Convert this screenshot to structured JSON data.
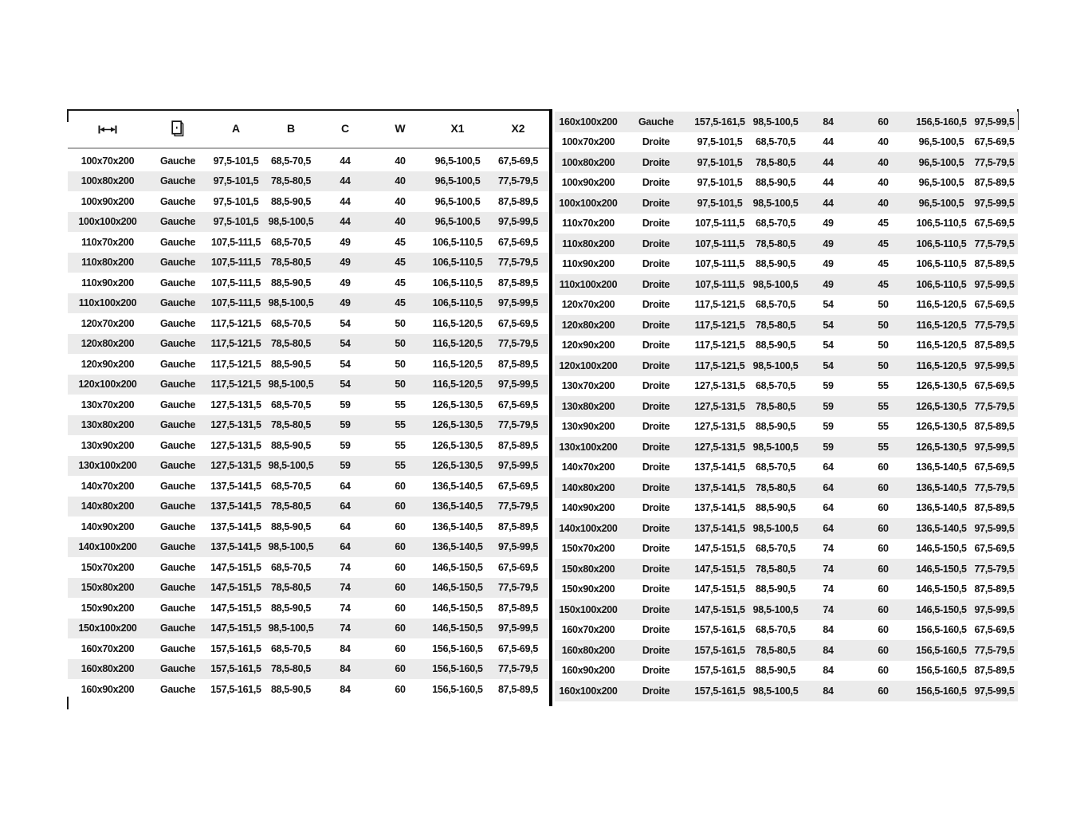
{
  "document": {
    "type": "dimension-specification-table",
    "left_panel_side_value": "Gauche",
    "right_panel_side_values": [
      "Gauche",
      "Droite"
    ]
  },
  "colors": {
    "background": "#ffffff",
    "stripe": "#ebebeb",
    "text": "#141414",
    "divider": "#000000",
    "header_rule": "#ababab"
  },
  "table": {
    "headers": {
      "col1_icon": "width-dimension-icon",
      "col2_icon": "door-icon",
      "labels": [
        "A",
        "B",
        "C",
        "W",
        "X1",
        "X2"
      ]
    },
    "columns": [
      "size",
      "side",
      "A",
      "B",
      "C",
      "W",
      "X1",
      "X2"
    ],
    "left_rows": [
      [
        "100x70x200",
        "Gauche",
        "97,5-101,5",
        "68,5-70,5",
        "44",
        "40",
        "96,5-100,5",
        "67,5-69,5"
      ],
      [
        "100x80x200",
        "Gauche",
        "97,5-101,5",
        "78,5-80,5",
        "44",
        "40",
        "96,5-100,5",
        "77,5-79,5"
      ],
      [
        "100x90x200",
        "Gauche",
        "97,5-101,5",
        "88,5-90,5",
        "44",
        "40",
        "96,5-100,5",
        "87,5-89,5"
      ],
      [
        "100x100x200",
        "Gauche",
        "97,5-101,5",
        "98,5-100,5",
        "44",
        "40",
        "96,5-100,5",
        "97,5-99,5"
      ],
      [
        "110x70x200",
        "Gauche",
        "107,5-111,5",
        "68,5-70,5",
        "49",
        "45",
        "106,5-110,5",
        "67,5-69,5"
      ],
      [
        "110x80x200",
        "Gauche",
        "107,5-111,5",
        "78,5-80,5",
        "49",
        "45",
        "106,5-110,5",
        "77,5-79,5"
      ],
      [
        "110x90x200",
        "Gauche",
        "107,5-111,5",
        "88,5-90,5",
        "49",
        "45",
        "106,5-110,5",
        "87,5-89,5"
      ],
      [
        "110x100x200",
        "Gauche",
        "107,5-111,5",
        "98,5-100,5",
        "49",
        "45",
        "106,5-110,5",
        "97,5-99,5"
      ],
      [
        "120x70x200",
        "Gauche",
        "117,5-121,5",
        "68,5-70,5",
        "54",
        "50",
        "116,5-120,5",
        "67,5-69,5"
      ],
      [
        "120x80x200",
        "Gauche",
        "117,5-121,5",
        "78,5-80,5",
        "54",
        "50",
        "116,5-120,5",
        "77,5-79,5"
      ],
      [
        "120x90x200",
        "Gauche",
        "117,5-121,5",
        "88,5-90,5",
        "54",
        "50",
        "116,5-120,5",
        "87,5-89,5"
      ],
      [
        "120x100x200",
        "Gauche",
        "117,5-121,5",
        "98,5-100,5",
        "54",
        "50",
        "116,5-120,5",
        "97,5-99,5"
      ],
      [
        "130x70x200",
        "Gauche",
        "127,5-131,5",
        "68,5-70,5",
        "59",
        "55",
        "126,5-130,5",
        "67,5-69,5"
      ],
      [
        "130x80x200",
        "Gauche",
        "127,5-131,5",
        "78,5-80,5",
        "59",
        "55",
        "126,5-130,5",
        "77,5-79,5"
      ],
      [
        "130x90x200",
        "Gauche",
        "127,5-131,5",
        "88,5-90,5",
        "59",
        "55",
        "126,5-130,5",
        "87,5-89,5"
      ],
      [
        "130x100x200",
        "Gauche",
        "127,5-131,5",
        "98,5-100,5",
        "59",
        "55",
        "126,5-130,5",
        "97,5-99,5"
      ],
      [
        "140x70x200",
        "Gauche",
        "137,5-141,5",
        "68,5-70,5",
        "64",
        "60",
        "136,5-140,5",
        "67,5-69,5"
      ],
      [
        "140x80x200",
        "Gauche",
        "137,5-141,5",
        "78,5-80,5",
        "64",
        "60",
        "136,5-140,5",
        "77,5-79,5"
      ],
      [
        "140x90x200",
        "Gauche",
        "137,5-141,5",
        "88,5-90,5",
        "64",
        "60",
        "136,5-140,5",
        "87,5-89,5"
      ],
      [
        "140x100x200",
        "Gauche",
        "137,5-141,5",
        "98,5-100,5",
        "64",
        "60",
        "136,5-140,5",
        "97,5-99,5"
      ],
      [
        "150x70x200",
        "Gauche",
        "147,5-151,5",
        "68,5-70,5",
        "74",
        "60",
        "146,5-150,5",
        "67,5-69,5"
      ],
      [
        "150x80x200",
        "Gauche",
        "147,5-151,5",
        "78,5-80,5",
        "74",
        "60",
        "146,5-150,5",
        "77,5-79,5"
      ],
      [
        "150x90x200",
        "Gauche",
        "147,5-151,5",
        "88,5-90,5",
        "74",
        "60",
        "146,5-150,5",
        "87,5-89,5"
      ],
      [
        "150x100x200",
        "Gauche",
        "147,5-151,5",
        "98,5-100,5",
        "74",
        "60",
        "146,5-150,5",
        "97,5-99,5"
      ],
      [
        "160x70x200",
        "Gauche",
        "157,5-161,5",
        "68,5-70,5",
        "84",
        "60",
        "156,5-160,5",
        "67,5-69,5"
      ],
      [
        "160x80x200",
        "Gauche",
        "157,5-161,5",
        "78,5-80,5",
        "84",
        "60",
        "156,5-160,5",
        "77,5-79,5"
      ],
      [
        "160x90x200",
        "Gauche",
        "157,5-161,5",
        "88,5-90,5",
        "84",
        "60",
        "156,5-160,5",
        "87,5-89,5"
      ]
    ],
    "right_rows": [
      [
        "160x100x200",
        "Gauche",
        "157,5-161,5",
        "98,5-100,5",
        "84",
        "60",
        "156,5-160,5",
        "97,5-99,5"
      ],
      [
        "100x70x200",
        "Droite",
        "97,5-101,5",
        "68,5-70,5",
        "44",
        "40",
        "96,5-100,5",
        "67,5-69,5"
      ],
      [
        "100x80x200",
        "Droite",
        "97,5-101,5",
        "78,5-80,5",
        "44",
        "40",
        "96,5-100,5",
        "77,5-79,5"
      ],
      [
        "100x90x200",
        "Droite",
        "97,5-101,5",
        "88,5-90,5",
        "44",
        "40",
        "96,5-100,5",
        "87,5-89,5"
      ],
      [
        "100x100x200",
        "Droite",
        "97,5-101,5",
        "98,5-100,5",
        "44",
        "40",
        "96,5-100,5",
        "97,5-99,5"
      ],
      [
        "110x70x200",
        "Droite",
        "107,5-111,5",
        "68,5-70,5",
        "49",
        "45",
        "106,5-110,5",
        "67,5-69,5"
      ],
      [
        "110x80x200",
        "Droite",
        "107,5-111,5",
        "78,5-80,5",
        "49",
        "45",
        "106,5-110,5",
        "77,5-79,5"
      ],
      [
        "110x90x200",
        "Droite",
        "107,5-111,5",
        "88,5-90,5",
        "49",
        "45",
        "106,5-110,5",
        "87,5-89,5"
      ],
      [
        "110x100x200",
        "Droite",
        "107,5-111,5",
        "98,5-100,5",
        "49",
        "45",
        "106,5-110,5",
        "97,5-99,5"
      ],
      [
        "120x70x200",
        "Droite",
        "117,5-121,5",
        "68,5-70,5",
        "54",
        "50",
        "116,5-120,5",
        "67,5-69,5"
      ],
      [
        "120x80x200",
        "Droite",
        "117,5-121,5",
        "78,5-80,5",
        "54",
        "50",
        "116,5-120,5",
        "77,5-79,5"
      ],
      [
        "120x90x200",
        "Droite",
        "117,5-121,5",
        "88,5-90,5",
        "54",
        "50",
        "116,5-120,5",
        "87,5-89,5"
      ],
      [
        "120x100x200",
        "Droite",
        "117,5-121,5",
        "98,5-100,5",
        "54",
        "50",
        "116,5-120,5",
        "97,5-99,5"
      ],
      [
        "130x70x200",
        "Droite",
        "127,5-131,5",
        "68,5-70,5",
        "59",
        "55",
        "126,5-130,5",
        "67,5-69,5"
      ],
      [
        "130x80x200",
        "Droite",
        "127,5-131,5",
        "78,5-80,5",
        "59",
        "55",
        "126,5-130,5",
        "77,5-79,5"
      ],
      [
        "130x90x200",
        "Droite",
        "127,5-131,5",
        "88,5-90,5",
        "59",
        "55",
        "126,5-130,5",
        "87,5-89,5"
      ],
      [
        "130x100x200",
        "Droite",
        "127,5-131,5",
        "98,5-100,5",
        "59",
        "55",
        "126,5-130,5",
        "97,5-99,5"
      ],
      [
        "140x70x200",
        "Droite",
        "137,5-141,5",
        "68,5-70,5",
        "64",
        "60",
        "136,5-140,5",
        "67,5-69,5"
      ],
      [
        "140x80x200",
        "Droite",
        "137,5-141,5",
        "78,5-80,5",
        "64",
        "60",
        "136,5-140,5",
        "77,5-79,5"
      ],
      [
        "140x90x200",
        "Droite",
        "137,5-141,5",
        "88,5-90,5",
        "64",
        "60",
        "136,5-140,5",
        "87,5-89,5"
      ],
      [
        "140x100x200",
        "Droite",
        "137,5-141,5",
        "98,5-100,5",
        "64",
        "60",
        "136,5-140,5",
        "97,5-99,5"
      ],
      [
        "150x70x200",
        "Droite",
        "147,5-151,5",
        "68,5-70,5",
        "74",
        "60",
        "146,5-150,5",
        "67,5-69,5"
      ],
      [
        "150x80x200",
        "Droite",
        "147,5-151,5",
        "78,5-80,5",
        "74",
        "60",
        "146,5-150,5",
        "77,5-79,5"
      ],
      [
        "150x90x200",
        "Droite",
        "147,5-151,5",
        "88,5-90,5",
        "74",
        "60",
        "146,5-150,5",
        "87,5-89,5"
      ],
      [
        "150x100x200",
        "Droite",
        "147,5-151,5",
        "98,5-100,5",
        "74",
        "60",
        "146,5-150,5",
        "97,5-99,5"
      ],
      [
        "160x70x200",
        "Droite",
        "157,5-161,5",
        "68,5-70,5",
        "84",
        "60",
        "156,5-160,5",
        "67,5-69,5"
      ],
      [
        "160x80x200",
        "Droite",
        "157,5-161,5",
        "78,5-80,5",
        "84",
        "60",
        "156,5-160,5",
        "77,5-79,5"
      ],
      [
        "160x90x200",
        "Droite",
        "157,5-161,5",
        "88,5-90,5",
        "84",
        "60",
        "156,5-160,5",
        "87,5-89,5"
      ],
      [
        "160x100x200",
        "Droite",
        "157,5-161,5",
        "98,5-100,5",
        "84",
        "60",
        "156,5-160,5",
        "97,5-99,5"
      ]
    ]
  }
}
